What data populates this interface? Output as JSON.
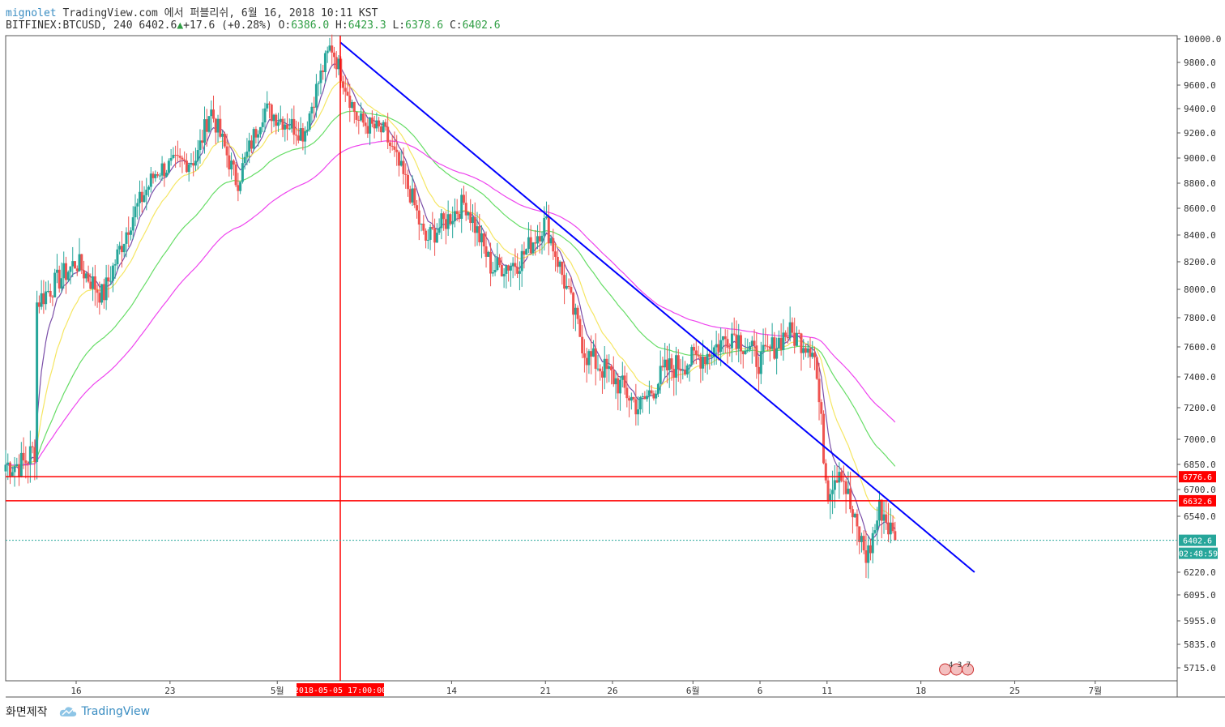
{
  "header": {
    "author": "mignolet",
    "published": "TradingView.com 에서 퍼블리쉬, 6월 16, 2018 10:11 KST",
    "symbol": "BITFINEX:BTCUSD, 240",
    "last": "6402.6",
    "change": "+17.6 (+0.28%)",
    "o_label": "O:",
    "o_value": "6386.0",
    "h_label": "H:",
    "h_value": "6423.3",
    "l_label": "L:",
    "l_value": "6378.6",
    "c_label": "C:",
    "c_value": "6402.6"
  },
  "footer": {
    "made_with": "화면제작",
    "brand": "TradingView"
  },
  "colors": {
    "up": "#26a69a",
    "down": "#ef5350",
    "trendline": "#0000ff",
    "hline": "#ff0000",
    "ma_fast": "#7b4fa8",
    "ma_yellow": "#f5e663",
    "ma_green": "#66dd66",
    "ma_pink": "#ee44ee",
    "price_badge": "#26a69a"
  },
  "chart_data": {
    "type": "candlestick",
    "y_axis_ticks": [
      "10000.0",
      "9800.0",
      "9600.0",
      "9400.0",
      "9200.0",
      "9000.0",
      "8800.0",
      "8600.0",
      "8400.0",
      "8200.0",
      "8000.0",
      "7800.0",
      "7600.0",
      "7400.0",
      "7200.0",
      "7000.0",
      "6850.0",
      "6700.0",
      "6540.0",
      "6220.0",
      "6095.0",
      "5955.0",
      "5835.0",
      "5715.0"
    ],
    "x_axis_ticks": [
      "16",
      "23",
      "5월",
      "14",
      "21",
      "26",
      "6월",
      "6",
      "11",
      "18",
      "25",
      "7월"
    ],
    "crosshair_date_label": "2018-05-05 17:00:00",
    "price_lines": [
      {
        "label": "6776.6",
        "value": 6776.6
      },
      {
        "label": "6632.6",
        "value": 6632.6
      }
    ],
    "last_price": {
      "label": "6402.6",
      "value": 6402.6
    },
    "countdown": "02:48:59",
    "event_marker": {
      "label": "4 3 7"
    },
    "trendline": {
      "from": {
        "date": "2018-05-05 17:00",
        "price": 9970
      },
      "to": {
        "date": "2018-06-22",
        "price": 6220
      }
    },
    "path_keypoints": [
      {
        "date": "2018-04-12",
        "price": 6850
      },
      {
        "date": "2018-04-13",
        "price": 6950
      },
      {
        "date": "2018-04-13",
        "price": 7900
      },
      {
        "date": "2018-04-16",
        "price": 8200
      },
      {
        "date": "2018-04-18",
        "price": 7950
      },
      {
        "date": "2018-04-20",
        "price": 8500
      },
      {
        "date": "2018-04-22",
        "price": 8900
      },
      {
        "date": "2018-04-25",
        "price": 9000
      },
      {
        "date": "2018-04-26",
        "price": 9400
      },
      {
        "date": "2018-04-28",
        "price": 8800
      },
      {
        "date": "2018-04-30",
        "price": 9400
      },
      {
        "date": "2018-05-03",
        "price": 9200
      },
      {
        "date": "2018-05-04",
        "price": 9600
      },
      {
        "date": "2018-05-05",
        "price": 9950
      },
      {
        "date": "2018-05-07",
        "price": 9300
      },
      {
        "date": "2018-05-09",
        "price": 9200
      },
      {
        "date": "2018-05-11",
        "price": 8700
      },
      {
        "date": "2018-05-12",
        "price": 8350
      },
      {
        "date": "2018-05-15",
        "price": 8650
      },
      {
        "date": "2018-05-17",
        "price": 8150
      },
      {
        "date": "2018-05-19",
        "price": 8200
      },
      {
        "date": "2018-05-21",
        "price": 8500
      },
      {
        "date": "2018-05-24",
        "price": 7550
      },
      {
        "date": "2018-05-26",
        "price": 7400
      },
      {
        "date": "2018-05-28",
        "price": 7200
      },
      {
        "date": "2018-05-30",
        "price": 7450
      },
      {
        "date": "2018-06-02",
        "price": 7550
      },
      {
        "date": "2018-06-04",
        "price": 7700
      },
      {
        "date": "2018-06-06",
        "price": 7500
      },
      {
        "date": "2018-06-08",
        "price": 7700
      },
      {
        "date": "2018-06-10",
        "price": 7600
      },
      {
        "date": "2018-06-11",
        "price": 6700
      },
      {
        "date": "2018-06-12",
        "price": 6850
      },
      {
        "date": "2018-06-13",
        "price": 6500
      },
      {
        "date": "2018-06-14",
        "price": 6300
      },
      {
        "date": "2018-06-15",
        "price": 6600
      },
      {
        "date": "2018-06-16",
        "price": 6402.6
      }
    ]
  }
}
